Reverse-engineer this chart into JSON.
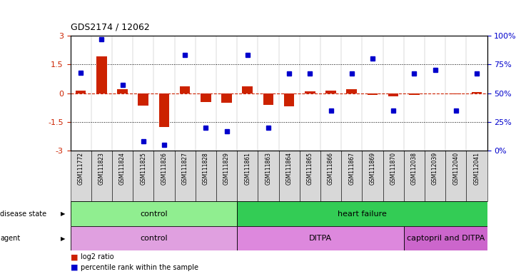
{
  "title": "GDS2174 / 12062",
  "samples": [
    "GSM111772",
    "GSM111823",
    "GSM111824",
    "GSM111825",
    "GSM111826",
    "GSM111827",
    "GSM111828",
    "GSM111829",
    "GSM111861",
    "GSM111863",
    "GSM111864",
    "GSM111865",
    "GSM111866",
    "GSM111867",
    "GSM111869",
    "GSM111870",
    "GSM112038",
    "GSM112039",
    "GSM112040",
    "GSM112041"
  ],
  "log2_ratio": [
    0.15,
    1.9,
    0.2,
    -0.65,
    -1.75,
    0.35,
    -0.45,
    -0.5,
    0.35,
    -0.6,
    -0.7,
    0.1,
    0.15,
    0.2,
    -0.1,
    -0.15,
    -0.1,
    0.0,
    -0.05,
    0.05
  ],
  "percentile": [
    68,
    97,
    57,
    8,
    5,
    83,
    20,
    17,
    83,
    20,
    67,
    67,
    35,
    67,
    80,
    35,
    67,
    70,
    35,
    67
  ],
  "bar_color": "#cc2200",
  "dot_color": "#0000cc",
  "ylim_left": [
    -3,
    3
  ],
  "ylim_right": [
    0,
    100
  ],
  "yticks_left": [
    -3,
    -1.5,
    0,
    1.5,
    3
  ],
  "ytick_labels_left": [
    "-3",
    "-1.5",
    "0",
    "1.5",
    "3"
  ],
  "yticks_right": [
    0,
    25,
    50,
    75,
    100
  ],
  "ytick_labels_right": [
    "0%",
    "25%",
    "50%",
    "75%",
    "100%"
  ],
  "hline_y": [
    1.5,
    -1.5
  ],
  "disease_state_groups": [
    {
      "label": "control",
      "start": 0,
      "end": 7,
      "color": "#90ee90"
    },
    {
      "label": "heart failure",
      "start": 8,
      "end": 19,
      "color": "#33cc55"
    }
  ],
  "agent_groups": [
    {
      "label": "control",
      "start": 0,
      "end": 7,
      "color": "#e0a0e0"
    },
    {
      "label": "DITPA",
      "start": 8,
      "end": 15,
      "color": "#dd88dd"
    },
    {
      "label": "captopril and DITPA",
      "start": 16,
      "end": 19,
      "color": "#cc66cc"
    }
  ],
  "legend_items": [
    {
      "label": "log2 ratio",
      "color": "#cc2200"
    },
    {
      "label": "percentile rank within the sample",
      "color": "#0000cc"
    }
  ],
  "background_color": "#ffffff",
  "plot_bg": "#ffffff",
  "axis_label_color_left": "#cc2200",
  "axis_label_color_right": "#0000cc",
  "tick_bg_color": "#d8d8d8"
}
